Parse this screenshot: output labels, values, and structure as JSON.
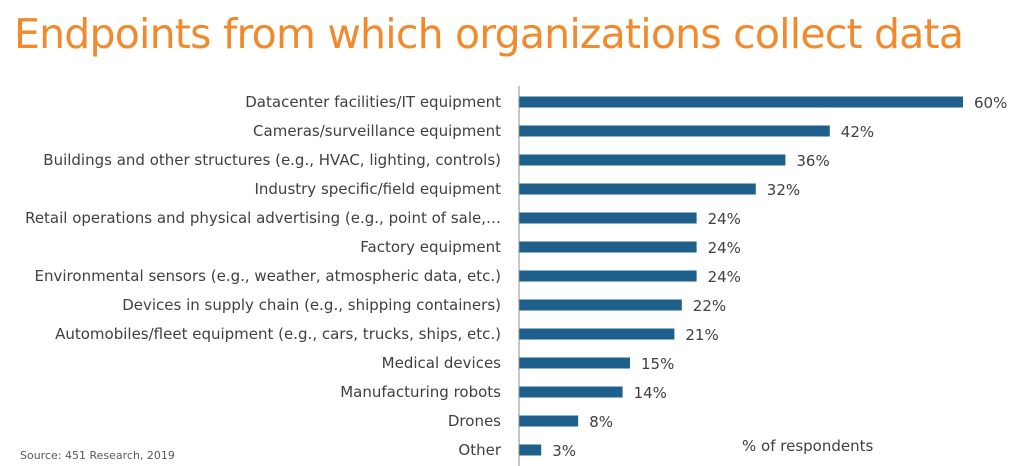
{
  "title": "Endpoints from which organizations collect data",
  "source": "Source: 451 Research, 2019",
  "unit_label": "% of respondents",
  "colors": {
    "title": "#F08A2C",
    "bar": "#1F5F8B",
    "axis": "#8C8C8C"
  },
  "chart_data": {
    "type": "bar",
    "orientation": "horizontal",
    "categories": [
      "Datacenter facilities/IT equipment",
      "Cameras/surveillance equipment",
      "Buildings and other structures (e.g., HVAC, lighting, controls)",
      "Industry specific/field equipment",
      "Retail operations and physical advertising (e.g., point of sale,…",
      "Factory equipment",
      "Environmental sensors (e.g., weather, atmospheric data, etc.)",
      "Devices in supply chain (e.g., shipping containers)",
      "Automobiles/fleet equipment (e.g., cars, trucks, ships, etc.)",
      "Medical devices",
      "Manufacturing robots",
      "Drones",
      "Other"
    ],
    "values": [
      60,
      42,
      36,
      32,
      24,
      24,
      24,
      22,
      21,
      15,
      14,
      8,
      3
    ],
    "value_labels": [
      "60%",
      "42%",
      "36%",
      "32%",
      "24%",
      "24%",
      "24%",
      "22%",
      "21%",
      "15%",
      "14%",
      "8%",
      "3%"
    ],
    "xlim": [
      0,
      60
    ],
    "grid": false,
    "legend": "none"
  }
}
